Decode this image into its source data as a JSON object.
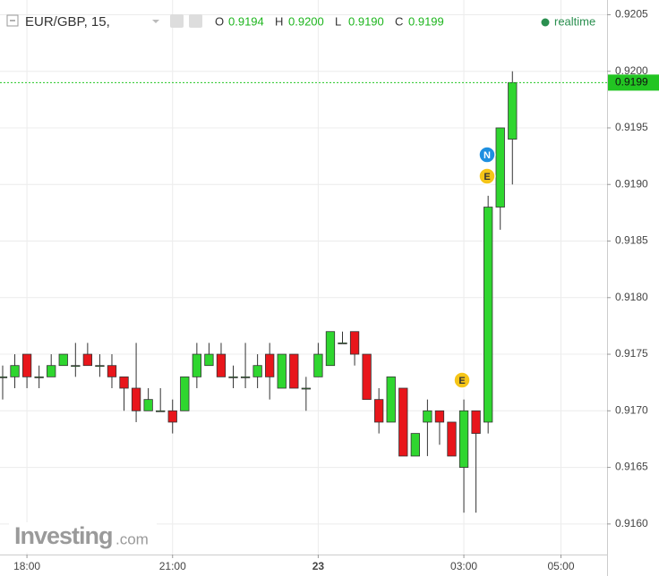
{
  "chart_data": {
    "type": "candlestick",
    "symbol": "EUR/GBP, 15,",
    "ohlc_header": [
      [
        "O",
        "0.9194"
      ],
      [
        "H",
        "0.9200"
      ],
      [
        "L",
        "0.9190"
      ],
      [
        "C",
        "0.9199"
      ]
    ],
    "status": "realtime",
    "brand": "Investing",
    "brand_suffix": ".com",
    "open": [
      0.9173,
      0.9173,
      0.9175,
      0.9173,
      0.9173,
      0.9174,
      0.9174,
      0.9175,
      0.9174,
      0.9174,
      0.9173,
      0.9172,
      0.917,
      0.917,
      0.917,
      0.917,
      0.9173,
      0.9174,
      0.9175,
      0.9173,
      0.9173,
      0.9173,
      0.9175,
      0.9172,
      0.9175,
      0.9172,
      0.9173,
      0.9174,
      0.9176,
      0.9177,
      0.9175,
      0.9171,
      0.9169,
      0.9172,
      0.9166,
      0.9169,
      0.917,
      0.9169,
      0.9165,
      0.917,
      0.9169,
      0.9188,
      0.9194
    ],
    "high": [
      0.9174,
      0.9175,
      0.9175,
      0.9174,
      0.9175,
      0.9175,
      0.9176,
      0.9176,
      0.9175,
      0.9175,
      0.9173,
      0.9176,
      0.9172,
      0.9172,
      0.9171,
      0.9173,
      0.9176,
      0.9176,
      0.9176,
      0.9174,
      0.9176,
      0.9175,
      0.9176,
      0.9175,
      0.9175,
      0.9173,
      0.9176,
      0.9177,
      0.9177,
      0.9177,
      0.9175,
      0.9172,
      0.9173,
      0.9172,
      0.9168,
      0.9171,
      0.917,
      0.9169,
      0.9171,
      0.917,
      0.9189,
      0.9195,
      0.92
    ],
    "low": [
      0.9171,
      0.9172,
      0.9172,
      0.9172,
      0.9173,
      0.9174,
      0.9173,
      0.9174,
      0.9173,
      0.9172,
      0.917,
      0.9169,
      0.917,
      0.917,
      0.9168,
      0.917,
      0.9172,
      0.9174,
      0.9173,
      0.9172,
      0.9172,
      0.9172,
      0.9171,
      0.9172,
      0.9172,
      0.917,
      0.9173,
      0.9174,
      0.9176,
      0.9174,
      0.9171,
      0.9168,
      0.9169,
      0.9166,
      0.9166,
      0.9166,
      0.9167,
      0.9166,
      0.9161,
      0.9161,
      0.9168,
      0.9186,
      0.919
    ],
    "close": [
      0.9173,
      0.9174,
      0.9173,
      0.9173,
      0.9174,
      0.9175,
      0.9174,
      0.9174,
      0.9174,
      0.9173,
      0.9172,
      0.917,
      0.9171,
      0.917,
      0.9169,
      0.9173,
      0.9175,
      0.9175,
      0.9173,
      0.9173,
      0.9173,
      0.9174,
      0.9173,
      0.9175,
      0.9172,
      0.9172,
      0.9175,
      0.9177,
      0.9176,
      0.9175,
      0.9171,
      0.9169,
      0.9173,
      0.9166,
      0.9168,
      0.917,
      0.9169,
      0.9166,
      0.917,
      0.9168,
      0.9188,
      0.9195,
      0.9199
    ],
    "up_color": "#2fd62f",
    "down_color": "#e8161b",
    "last_price": 0.9199,
    "events": [
      "E",
      "N",
      "E"
    ],
    "xlim": [
      -0.22,
      49.8
    ],
    "xticks": [
      {
        "value": 2,
        "label": "18:00"
      },
      {
        "value": 14,
        "label": "21:00"
      },
      {
        "value": 26,
        "label": "23"
      },
      {
        "value": 38,
        "label": "03:00"
      },
      {
        "value": 46,
        "label": "05:00"
      }
    ],
    "ylim": [
      0.91573,
      0.92063
    ],
    "yticks": [
      {
        "value": 0.916,
        "label": "0.9160"
      },
      0.9165,
      {
        "value": 0.917,
        "label": "0.9170"
      },
      0.9175,
      {
        "value": 0.918,
        "label": "0.9180"
      },
      0.9185,
      {
        "value": 0.919,
        "label": "0.9190"
      },
      0.9195,
      {
        "value": 0.92,
        "label": "0.9200"
      },
      0.9205
    ],
    "grid": true
  }
}
